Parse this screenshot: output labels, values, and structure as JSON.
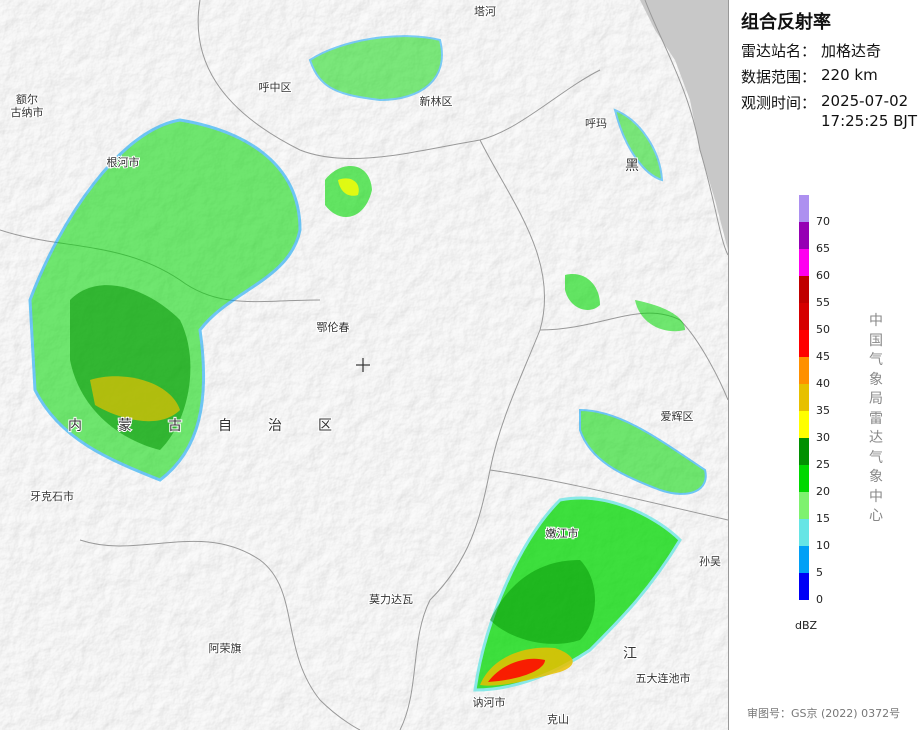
{
  "panel": {
    "title": "组合反射率",
    "station": {
      "label": "雷达站名：",
      "value": "加格达奇"
    },
    "range": {
      "label": "数据范围：",
      "value": "220 km"
    },
    "time": {
      "label": "观测时间：",
      "value": [
        "2025-07-02",
        "17:25:25 BJT"
      ]
    }
  },
  "legend": {
    "values": [
      0,
      5,
      10,
      15,
      20,
      25,
      30,
      35,
      40,
      45,
      50,
      55,
      60,
      65,
      70
    ],
    "colors": [
      "#0000f6",
      "#01a0f6",
      "#66e5e5",
      "#7ef26f",
      "#00d800",
      "#019001",
      "#ffff00",
      "#e7c000",
      "#ff9000",
      "#ff0000",
      "#d60000",
      "#c00000",
      "#ff00f0",
      "#9600b4",
      "#ad90f0"
    ],
    "unit": "dBZ"
  },
  "credit": "中国气象局雷达气象中心",
  "approval": "审图号：GS京 (2022) 0372号",
  "map_labels": [
    "塔河",
    [
      "额尔",
      "古纳市"
    ],
    "呼中区",
    "新林区",
    "呼玛",
    "根河市",
    "黑",
    "鄂伦春",
    "内蒙古自治区",
    "爱辉区",
    "牙克石市",
    "嫩江市",
    "孙吴",
    "莫力达瓦",
    "阿荣旗",
    "江",
    "五大连池市",
    "讷河市",
    "克山"
  ]
}
